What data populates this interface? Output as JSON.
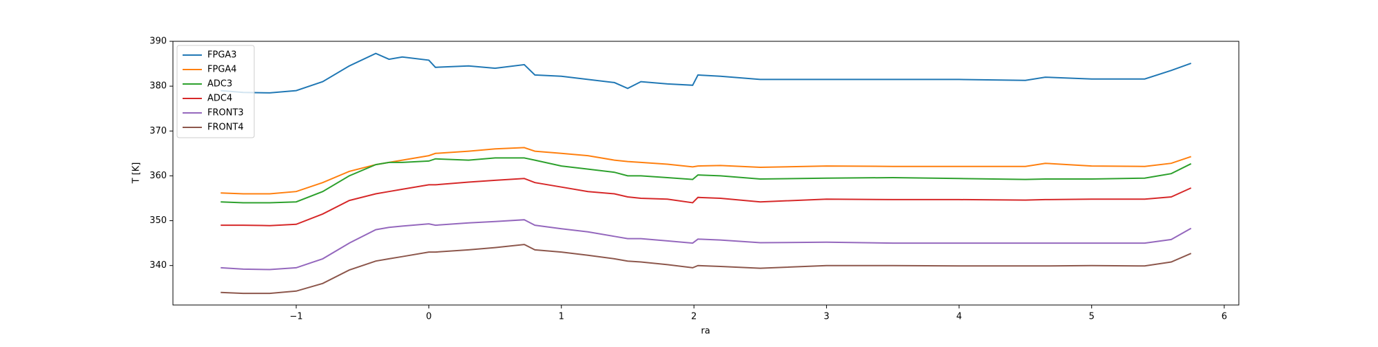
{
  "chart_data": {
    "type": "line",
    "x_label": "ra",
    "y_label": "T [K]",
    "x": [
      -1.57,
      -1.4,
      -1.2,
      -1.0,
      -0.8,
      -0.6,
      -0.4,
      -0.3,
      -0.2,
      0,
      0.05,
      0.3,
      0.5,
      0.72,
      0.8,
      1.0,
      1.2,
      1.4,
      1.5,
      1.6,
      1.8,
      1.99,
      2.03,
      2.2,
      2.5,
      3.0,
      3.5,
      4.0,
      4.5,
      4.65,
      5.0,
      5.4,
      5.6,
      5.75
    ],
    "series": [
      {
        "name": "FPGA3",
        "color": "#1f77b4",
        "values": [
          379,
          378.6,
          378.5,
          379,
          381,
          384.5,
          387.3,
          386,
          386.5,
          385.8,
          384.2,
          384.5,
          384,
          384.8,
          382.5,
          382.2,
          381.5,
          380.8,
          379.5,
          381,
          380.5,
          380.2,
          382.5,
          382.2,
          381.5,
          381.5,
          381.5,
          381.5,
          381.3,
          382,
          381.6,
          381.6,
          383.5,
          385.1
        ]
      },
      {
        "name": "FPGA4",
        "color": "#ff7f0e",
        "values": [
          356.2,
          356,
          356,
          356.5,
          358.5,
          361,
          362.5,
          363,
          363.5,
          364.5,
          365,
          365.5,
          366,
          366.3,
          365.5,
          365,
          364.5,
          363.5,
          363.2,
          363,
          362.6,
          362,
          362.2,
          362.3,
          361.9,
          362.2,
          362.1,
          362.1,
          362.1,
          362.8,
          362.2,
          362.1,
          362.8,
          364.3
        ]
      },
      {
        "name": "ADC3",
        "color": "#2ca02c",
        "values": [
          354.2,
          354,
          354,
          354.2,
          356.5,
          360,
          362.5,
          363,
          363,
          363.3,
          363.8,
          363.5,
          364,
          364,
          363.5,
          362.2,
          361.5,
          360.8,
          360,
          360,
          359.6,
          359.2,
          360.2,
          360,
          359.3,
          359.5,
          359.6,
          359.4,
          359.2,
          359.3,
          359.3,
          359.5,
          360.5,
          362.7
        ]
      },
      {
        "name": "ADC4",
        "color": "#d62728",
        "values": [
          349,
          349,
          348.9,
          349.2,
          351.5,
          354.5,
          356,
          356.5,
          357,
          358,
          358,
          358.6,
          359,
          359.4,
          358.5,
          357.5,
          356.5,
          356,
          355.3,
          355,
          354.8,
          354,
          355.2,
          355,
          354.2,
          354.8,
          354.7,
          354.7,
          354.6,
          354.7,
          354.8,
          354.8,
          355.3,
          357.3
        ]
      },
      {
        "name": "FRONT3",
        "color": "#9467bd",
        "values": [
          339.5,
          339.2,
          339.1,
          339.5,
          341.5,
          345,
          348,
          348.5,
          348.8,
          349.3,
          349,
          349.5,
          349.8,
          350.2,
          349,
          348.2,
          347.5,
          346.5,
          346,
          346,
          345.5,
          345,
          345.9,
          345.7,
          345.1,
          345.2,
          345,
          345,
          345,
          345,
          345,
          345,
          345.8,
          348.3
        ]
      },
      {
        "name": "FRONT4",
        "color": "#8c564b",
        "values": [
          334,
          333.8,
          333.8,
          334.3,
          336,
          339,
          341,
          341.5,
          342,
          343,
          343,
          343.5,
          344,
          344.7,
          343.5,
          343,
          342.3,
          341.5,
          341,
          340.8,
          340.2,
          339.5,
          340,
          339.8,
          339.4,
          340,
          340,
          339.9,
          339.9,
          339.9,
          340,
          339.9,
          340.8,
          342.7
        ]
      }
    ],
    "xlim": [
      -1.93,
      6.11
    ],
    "ylim": [
      331.2,
      390
    ],
    "xticks": [
      {
        "value": -1,
        "label": "−1"
      },
      0,
      1,
      2,
      3,
      4,
      5,
      6
    ],
    "yticks": [
      340,
      350,
      360,
      370,
      380,
      390
    ],
    "legend": "upper left"
  }
}
